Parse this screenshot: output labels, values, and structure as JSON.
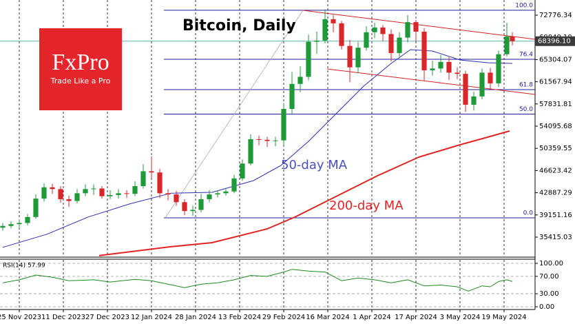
{
  "chart_data": [
    {
      "type": "candlestick",
      "title": "Bitcoin, Daily",
      "x": [
        -6,
        -3,
        0,
        3,
        6,
        9,
        12,
        15,
        18,
        21,
        24,
        27,
        30,
        33,
        36,
        39,
        42,
        45,
        48,
        51,
        54,
        57,
        60,
        63,
        66,
        69,
        72,
        75,
        78,
        81,
        84,
        87,
        90,
        93,
        96,
        99,
        102,
        105,
        108,
        111,
        114,
        117,
        120,
        123,
        126,
        129,
        132,
        135,
        138,
        141,
        144,
        147,
        150,
        153,
        156,
        159,
        162,
        165,
        168,
        171,
        174,
        177,
        179
      ],
      "open": [
        37000,
        37300,
        37600,
        37800,
        38800,
        41900,
        43800,
        43500,
        41800,
        41500,
        42800,
        43500,
        43600,
        42300,
        42500,
        42800,
        42700,
        44000,
        46500,
        46300,
        42800,
        42600,
        41300,
        39800,
        40000,
        41800,
        42600,
        42800,
        43100,
        45300,
        47800,
        51900,
        51800,
        51600,
        51700,
        57000,
        61200,
        62400,
        68300,
        68500,
        72100,
        71400,
        67600,
        64000,
        67300,
        69900,
        70700,
        69600,
        66400,
        69000,
        71600,
        70000,
        63500,
        63800,
        64900,
        63100,
        62900,
        57700,
        59100,
        63100,
        61300,
        66200,
        69200
      ],
      "high": [
        37800,
        38100,
        38400,
        39300,
        42600,
        44500,
        44400,
        44000,
        42400,
        43500,
        44300,
        44300,
        44000,
        43300,
        43500,
        43300,
        44800,
        47700,
        49000,
        46900,
        43500,
        43200,
        41800,
        40700,
        42700,
        43300,
        43300,
        43500,
        45900,
        48500,
        52700,
        52500,
        52300,
        52300,
        58000,
        63200,
        64200,
        69500,
        70000,
        73700,
        72800,
        71800,
        68600,
        68300,
        70900,
        71500,
        71100,
        70400,
        69900,
        72800,
        72000,
        70600,
        65100,
        66100,
        65700,
        64000,
        63400,
        59900,
        63800,
        63900,
        66800,
        71500,
        69900
      ],
      "low": [
        36500,
        36900,
        37100,
        37400,
        38500,
        41400,
        42700,
        41200,
        40500,
        41100,
        42300,
        42500,
        41900,
        41800,
        41900,
        42000,
        42300,
        43600,
        45400,
        42000,
        41600,
        40700,
        39100,
        39000,
        39600,
        41300,
        42100,
        42400,
        42800,
        44900,
        47500,
        50900,
        50600,
        50700,
        50900,
        56200,
        59800,
        61800,
        66300,
        68000,
        69900,
        67000,
        61500,
        63000,
        66800,
        68900,
        68400,
        65000,
        65800,
        68200,
        68400,
        61700,
        62600,
        63100,
        61900,
        62000,
        56500,
        56700,
        58600,
        60300,
        60700,
        65800,
        67700
      ],
      "close": [
        37300,
        37600,
        37800,
        38800,
        41900,
        43800,
        43500,
        41800,
        41500,
        42800,
        43500,
        43600,
        42300,
        42500,
        42800,
        42700,
        44000,
        46500,
        46300,
        42800,
        42600,
        41300,
        39800,
        40000,
        41800,
        42600,
        42800,
        43100,
        45300,
        47800,
        51900,
        51800,
        51600,
        51700,
        57000,
        61200,
        62400,
        68300,
        68500,
        72100,
        71400,
        67600,
        64000,
        67300,
        69900,
        70700,
        69600,
        66400,
        69000,
        71600,
        70000,
        63500,
        63800,
        64900,
        63100,
        62900,
        57700,
        59100,
        63100,
        61300,
        66200,
        69200,
        68396
      ],
      "up_color": "#1f9a3a",
      "down_color": "#d8262b",
      "series": [
        {
          "name": "50-day MA",
          "color": "#2a2fb0",
          "x": [
            -6,
            10,
            25,
            40,
            55,
            70,
            85,
            95,
            105,
            115,
            125,
            135,
            142,
            150,
            160,
            170,
            179
          ],
          "values": [
            33700,
            35900,
            38800,
            41000,
            42800,
            42950,
            44930,
            47480,
            51540,
            56180,
            60820,
            64650,
            66970,
            66740,
            65230,
            64770,
            64650
          ]
        },
        {
          "name": "200-day MA",
          "color": "#e02424",
          "x": [
            29,
            55,
            70,
            90,
            100,
            115,
            130,
            145,
            160,
            170,
            178
          ],
          "values": [
            32300,
            33800,
            34480,
            36800,
            38780,
            42260,
            45740,
            48870,
            50960,
            52240,
            53280
          ]
        }
      ],
      "last_price": {
        "value": 68396.1,
        "label": "68396.10"
      },
      "fib_levels": [
        {
          "value": 73600,
          "label": "100.0"
        },
        {
          "value": 65350,
          "label": "76.4"
        },
        {
          "value": 60250,
          "label": "61.8"
        },
        {
          "value": 56130,
          "label": "50.0"
        },
        {
          "value": 38660,
          "label": "0.0"
        }
      ],
      "xlim": [
        -7,
        186.75
      ],
      "xticks": [
        {
          "value": 0,
          "label": "25 Nov 2023"
        },
        {
          "value": 16,
          "label": "11 Dec 2023"
        },
        {
          "value": 32,
          "label": "27 Dec 2023"
        },
        {
          "value": 48,
          "label": "12 Jan 2024"
        },
        {
          "value": 64,
          "label": "28 Jan 2024"
        },
        {
          "value": 80,
          "label": "13 Feb 2024"
        },
        {
          "value": 96,
          "label": "29 Feb 2024"
        },
        {
          "value": 112,
          "label": "16 Mar 2024"
        },
        {
          "value": 128,
          "label": "1 Apr 2024"
        },
        {
          "value": 144,
          "label": "17 Apr 2024"
        },
        {
          "value": 160,
          "label": "3 May 2024"
        },
        {
          "value": 176,
          "label": "19 May 2024"
        }
      ],
      "ylim": [
        32164,
        74749
      ],
      "yticks": [
        72776.34,
        {
          "value": 69040.1,
          "label": "69040.10"
        },
        65304.07,
        61567.94,
        57831.81,
        54095.68,
        50359.55,
        46623.42,
        42887.29,
        39151.16,
        35415.03
      ]
    },
    {
      "type": "line",
      "title": "RSI(14) 57.99",
      "color": "#1f8a1f",
      "x": [
        -6,
        0,
        6,
        12,
        18,
        27,
        33,
        42,
        48,
        54,
        60,
        66,
        72,
        78,
        84,
        90,
        96,
        99,
        105,
        111,
        117,
        123,
        129,
        135,
        141,
        147,
        153,
        159,
        163,
        168,
        171,
        174,
        177,
        179
      ],
      "values": [
        55,
        62,
        73,
        68,
        60,
        62,
        57,
        63,
        60,
        52,
        44,
        52,
        55,
        62,
        72,
        70,
        80,
        86,
        82,
        80,
        60,
        66,
        62,
        55,
        62,
        48,
        50,
        46,
        36,
        48,
        46,
        58,
        62,
        57.99
      ],
      "ylim": [
        -4.8,
        109.5
      ],
      "yticks": [
        {
          "value": 100,
          "label": "100.00"
        },
        {
          "value": 70,
          "label": "70.00"
        },
        {
          "value": 30,
          "label": "30.00"
        },
        {
          "value": 0,
          "label": "0.00"
        }
      ]
    }
  ],
  "logo": {
    "name": "FxPro",
    "tagline": "Trade Like a Pro"
  }
}
